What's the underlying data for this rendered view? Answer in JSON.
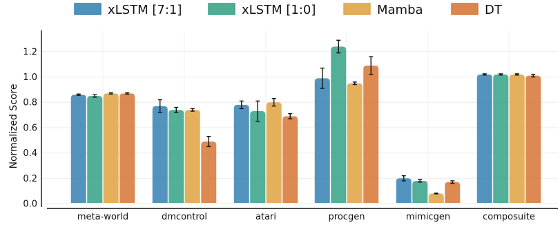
{
  "chart_data": {
    "type": "bar",
    "title": "",
    "xlabel": "",
    "ylabel": "Normalized Score",
    "ylim": [
      0,
      1.3
    ],
    "yticks": [
      0.0,
      0.2,
      0.4,
      0.6,
      0.8,
      1.0,
      1.2
    ],
    "ytick_labels": [
      "0.0",
      "0.2",
      "0.4",
      "0.6",
      "0.8",
      "1.0",
      "1.2"
    ],
    "grid": true,
    "legend_position": "top",
    "categories": [
      "meta-world",
      "dmcontrol",
      "atari",
      "procgen",
      "mimicgen",
      "composuite"
    ],
    "series": [
      {
        "name": "xLSTM [7:1]",
        "color": "#3a85b5",
        "values": [
          0.86,
          0.77,
          0.78,
          0.99,
          0.2,
          1.02
        ],
        "errors": [
          0.005,
          0.05,
          0.03,
          0.08,
          0.02,
          0.005
        ]
      },
      {
        "name": "xLSTM [1:0]",
        "color": "#3aa48a",
        "values": [
          0.85,
          0.74,
          0.73,
          1.24,
          0.18,
          1.02
        ],
        "errors": [
          0.01,
          0.02,
          0.08,
          0.05,
          0.01,
          0.005
        ]
      },
      {
        "name": "Mamba",
        "color": "#e0a545",
        "values": [
          0.87,
          0.74,
          0.8,
          0.95,
          0.08,
          1.02
        ],
        "errors": [
          0.005,
          0.01,
          0.03,
          0.01,
          0.003,
          0.005
        ]
      },
      {
        "name": "DT",
        "color": "#d7793a",
        "values": [
          0.87,
          0.49,
          0.69,
          1.09,
          0.17,
          1.01
        ],
        "errors": [
          0.005,
          0.04,
          0.02,
          0.07,
          0.01,
          0.01
        ]
      }
    ]
  }
}
